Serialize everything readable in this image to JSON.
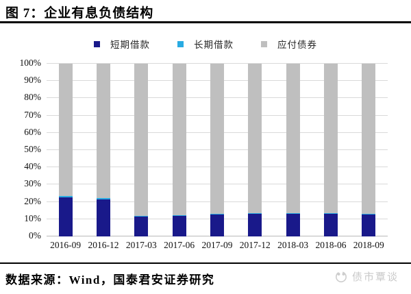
{
  "header": {
    "title": "图 7：企业有息负债结构"
  },
  "chart_data": {
    "type": "bar",
    "stacked": true,
    "unit": "%",
    "title": "企业有息负债结构",
    "categories": [
      "2016-09",
      "2016-12",
      "2017-03",
      "2017-06",
      "2017-09",
      "2017-12",
      "2018-03",
      "2018-06",
      "2018-09"
    ],
    "series": [
      {
        "name": "短期借款",
        "color": "#19198A",
        "values": [
          22.5,
          21.5,
          11.5,
          11.8,
          12.6,
          13.0,
          13.1,
          13.2,
          12.8
        ]
      },
      {
        "name": "长期借款",
        "color": "#29ABE2",
        "values": [
          0.9,
          0.8,
          0.4,
          0.4,
          0.4,
          0.4,
          0.4,
          0.4,
          0.4
        ]
      },
      {
        "name": "应付债券",
        "color": "#BFBFBF",
        "values": [
          76.6,
          77.7,
          88.1,
          87.8,
          87.0,
          86.6,
          86.5,
          86.4,
          86.8
        ]
      }
    ],
    "ylim": [
      0,
      100
    ],
    "yticks": [
      "0%",
      "10%",
      "20%",
      "30%",
      "40%",
      "50%",
      "60%",
      "70%",
      "80%",
      "90%",
      "100%"
    ],
    "grid": true,
    "legend_position": "top"
  },
  "footer": {
    "source": "数据来源：Wind，国泰君安证券研究",
    "watermark": "债市覃谈"
  }
}
